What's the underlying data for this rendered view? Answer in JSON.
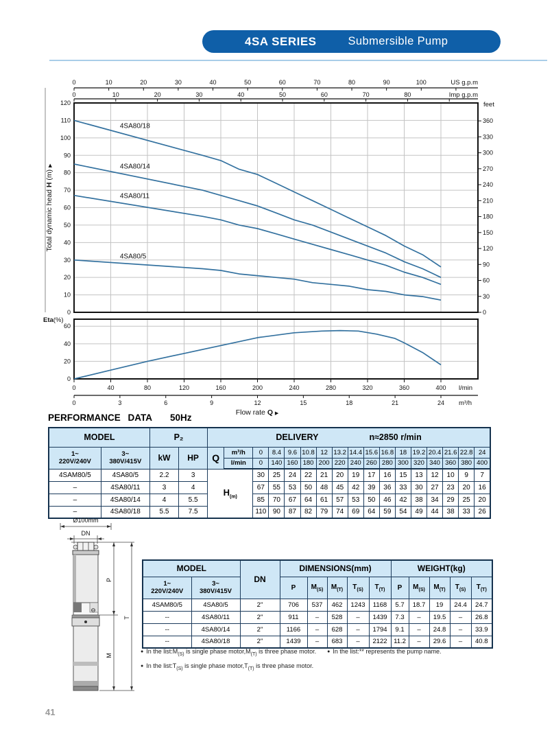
{
  "page": {
    "number": "41"
  },
  "banner": {
    "series": "4SA SERIES",
    "subtitle": "Submersible Pump",
    "color": "#0f5fa8"
  },
  "section_heading": {
    "title": "PERFORMANCE DATA",
    "freq": "50Hz"
  },
  "chart_data": [
    {
      "type": "line",
      "title": "4SA series head curves",
      "ylabel": "Total dynamic head H (m)",
      "xlabel": "Flow rate Q",
      "x_lmin": [
        0,
        140,
        160,
        180,
        200,
        220,
        240,
        260,
        280,
        300,
        320,
        340,
        360,
        380,
        400
      ],
      "series": [
        {
          "name": "4SA80/18",
          "values": [
            110,
            90,
            87,
            82,
            79,
            74,
            69,
            64,
            59,
            54,
            49,
            44,
            38,
            33,
            26
          ]
        },
        {
          "name": "4SA80/14",
          "values": [
            85,
            70,
            67,
            64,
            61,
            57,
            53,
            50,
            46,
            42,
            38,
            34,
            29,
            25,
            20
          ]
        },
        {
          "name": "4SA80/11",
          "values": [
            67,
            55,
            53,
            50,
            48,
            45,
            42,
            39,
            36,
            33,
            30,
            27,
            23,
            20,
            16
          ]
        },
        {
          "name": "4SA80/5",
          "values": [
            30,
            25,
            24,
            22,
            21,
            20,
            19,
            17,
            16,
            15,
            13,
            12,
            10,
            9,
            7
          ]
        }
      ],
      "ylim": [
        0,
        120
      ],
      "xlim_lmin": [
        0,
        440
      ],
      "yticks": [
        0,
        10,
        20,
        30,
        40,
        50,
        60,
        70,
        80,
        90,
        100,
        110,
        120
      ],
      "grid": true,
      "curve_color": "#33719f",
      "axes": {
        "us_gpm": {
          "label": "US g.p.m",
          "ticks": [
            0,
            10,
            20,
            30,
            40,
            50,
            60,
            70,
            80,
            90,
            100
          ],
          "lmin_per_unit": 3.7854
        },
        "imp_gpm": {
          "label": "Imp g.p.m",
          "ticks": [
            0,
            10,
            20,
            30,
            40,
            50,
            60,
            70,
            80
          ],
          "lmin_per_unit": 4.5461
        },
        "feet": {
          "label": "feet",
          "ticks": [
            0,
            30,
            60,
            90,
            120,
            150,
            180,
            210,
            240,
            270,
            300,
            330,
            360
          ],
          "m_per_unit": 0.3048
        },
        "lmin": {
          "label": "l/min",
          "ticks": [
            0,
            40,
            80,
            120,
            160,
            200,
            240,
            280,
            320,
            360,
            400
          ]
        },
        "m3h": {
          "label": "m³/h",
          "ticks": [
            0,
            3,
            6,
            9,
            12,
            15,
            18,
            21,
            24
          ],
          "lmin_per_unit": 16.6667
        }
      }
    },
    {
      "type": "line",
      "title": "Efficiency curve",
      "ylabel": "Eta(%)",
      "x_lmin": [
        0,
        40,
        80,
        120,
        160,
        200,
        240,
        270,
        290,
        310,
        330,
        350,
        360,
        380,
        400
      ],
      "values": [
        0,
        10,
        20,
        29,
        38,
        47,
        52.5,
        54.5,
        55,
        54.5,
        51,
        46,
        41,
        30,
        16
      ],
      "ylim": [
        0,
        68
      ],
      "yticks": [
        0,
        20,
        40,
        60
      ]
    }
  ],
  "performance_table": {
    "header": {
      "model": "MODEL",
      "p2": "P₂",
      "delivery": "DELIVERY",
      "speed": "n≈2850 r/min",
      "ph1_line1": "1~",
      "ph1_line2": "220V/240V",
      "ph3_line1": "3~",
      "ph3_line2": "380V/415V",
      "kw": "kW",
      "hp": "HP",
      "q": "Q",
      "m3h": "m³/h",
      "lmin": "l/min",
      "h_m": "H(m)"
    },
    "q_m3h": [
      "0",
      "8.4",
      "9.6",
      "10.8",
      "12",
      "13.2",
      "14.4",
      "15.6",
      "16.8",
      "18",
      "19.2",
      "20.4",
      "21.6",
      "22.8",
      "24"
    ],
    "q_lmin": [
      "0",
      "140",
      "160",
      "180",
      "200",
      "220",
      "240",
      "260",
      "280",
      "300",
      "320",
      "340",
      "360",
      "380",
      "400"
    ],
    "rows": [
      {
        "model_1ph": "4SAM80/5",
        "model_3ph": "4SA80/5",
        "kw": "2.2",
        "hp": "3",
        "h": [
          "30",
          "25",
          "24",
          "22",
          "21",
          "20",
          "19",
          "17",
          "16",
          "15",
          "13",
          "12",
          "10",
          "9",
          "7"
        ]
      },
      {
        "model_1ph": "–",
        "model_3ph": "4SA80/11",
        "kw": "3",
        "hp": "4",
        "h": [
          "67",
          "55",
          "53",
          "50",
          "48",
          "45",
          "42",
          "39",
          "36",
          "33",
          "30",
          "27",
          "23",
          "20",
          "16"
        ]
      },
      {
        "model_1ph": "–",
        "model_3ph": "4SA80/14",
        "kw": "4",
        "hp": "5.5",
        "h": [
          "85",
          "70",
          "67",
          "64",
          "61",
          "57",
          "53",
          "50",
          "46",
          "42",
          "38",
          "34",
          "29",
          "25",
          "20"
        ]
      },
      {
        "model_1ph": "–",
        "model_3ph": "4SA80/18",
        "kw": "5.5",
        "hp": "7.5",
        "h": [
          "110",
          "90",
          "87",
          "82",
          "79",
          "74",
          "69",
          "64",
          "59",
          "54",
          "49",
          "44",
          "38",
          "33",
          "26"
        ]
      }
    ]
  },
  "dimensions_table": {
    "header": {
      "model": "MODEL",
      "dn": "DN",
      "dimensions": "DIMENSIONS(mm)",
      "weight": "WEIGHT(kg)",
      "ph1_line1": "1~",
      "ph1_line2": "220V/240V",
      "ph3_line1": "3~",
      "ph3_line2": "380V/415V",
      "sub": [
        "P",
        "M(S)",
        "M(T)",
        "T(S)",
        "T(T)",
        "P",
        "M(S)",
        "M(T)",
        "T(S)",
        "T(T)"
      ]
    },
    "rows": [
      {
        "model_1ph": "4SAM80/5",
        "model_3ph": "4SA80/5",
        "dn": "2\"",
        "dims": [
          "706",
          "537",
          "462",
          "1243",
          "1168"
        ],
        "weights": [
          "5.7",
          "18.7",
          "19",
          "24.4",
          "24.7"
        ]
      },
      {
        "model_1ph": "--",
        "model_3ph": "4SA80/11",
        "dn": "2\"",
        "dims": [
          "911",
          "–",
          "528",
          "–",
          "1439"
        ],
        "weights": [
          "7.3",
          "–",
          "19.5",
          "–",
          "26.8"
        ]
      },
      {
        "model_1ph": "--",
        "model_3ph": "4SA80/14",
        "dn": "2\"",
        "dims": [
          "1166",
          "–",
          "628",
          "–",
          "1794"
        ],
        "weights": [
          "9.1",
          "–",
          "24.8",
          "–",
          "33.9"
        ]
      },
      {
        "model_1ph": "--",
        "model_3ph": "4SA80/18",
        "dn": "2\"",
        "dims": [
          "1439",
          "–",
          "683",
          "–",
          "2122"
        ],
        "weights": [
          "11.2",
          "–",
          "29.6",
          "–",
          "40.8"
        ]
      }
    ]
  },
  "footnotes": [
    [
      "In the list:M(S) is single phase motor,M(T) is three phase motor.",
      "In the list:** represents the pump name."
    ],
    [
      "In the list:T(S) is single phase motor,T(T) is three phase motor."
    ]
  ],
  "pump_drawing": {
    "labels": {
      "diameter": "Ø100mm",
      "dn": "DN",
      "p": "P",
      "t": "T",
      "m": "M"
    }
  }
}
